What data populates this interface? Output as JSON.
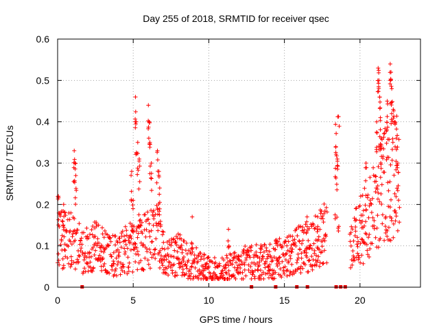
{
  "chart_data": {
    "type": "scatter",
    "title": "Day 255 of 2018, SRMTID for receiver qsec",
    "xlabel": "GPS time / hours",
    "ylabel": "SRMTID / TECUs",
    "xlim": [
      0,
      24
    ],
    "ylim": [
      0,
      0.6
    ],
    "x_ticks": [
      0,
      5,
      10,
      15,
      20
    ],
    "x_tick_labels": [
      "0",
      "5",
      "10",
      "15",
      "20"
    ],
    "y_ticks": [
      0,
      0.1,
      0.2,
      0.3,
      0.4,
      0.5,
      0.6
    ],
    "y_tick_labels": [
      "0",
      "0.1",
      "0.2",
      "0.3",
      "0.4",
      "0.5",
      "0.6"
    ],
    "grid": true,
    "marker": "plus",
    "color": "#ff0000",
    "series_profile": {
      "x": [
        0.0,
        0.3,
        0.7,
        1.0,
        1.3,
        1.7,
        2.0,
        2.5,
        3.0,
        3.5,
        4.0,
        4.5,
        5.0,
        5.5,
        6.0,
        6.5,
        7.0,
        7.5,
        8.0,
        8.5,
        9.0,
        9.5,
        10.0,
        10.5,
        11.0,
        11.5,
        12.0,
        12.5,
        13.0,
        13.5,
        14.0,
        14.5,
        15.0,
        15.5,
        16.0,
        16.5,
        17.0,
        17.5,
        17.8,
        18.4,
        18.6,
        19.0,
        19.5,
        20.0,
        20.5,
        21.0,
        21.5,
        22.0,
        22.5
      ],
      "y": [
        0.14,
        0.12,
        0.11,
        0.12,
        0.1,
        0.08,
        0.09,
        0.1,
        0.09,
        0.08,
        0.07,
        0.09,
        0.1,
        0.11,
        0.12,
        0.13,
        0.08,
        0.07,
        0.08,
        0.07,
        0.06,
        0.05,
        0.04,
        0.04,
        0.04,
        0.05,
        0.05,
        0.06,
        0.06,
        0.06,
        0.06,
        0.07,
        0.07,
        0.08,
        0.09,
        0.1,
        0.11,
        0.12,
        0.13,
        0.3,
        0.31,
        0.09,
        0.1,
        0.14,
        0.16,
        0.2,
        0.24,
        0.26,
        0.27
      ]
    },
    "spikes": [
      {
        "x": 0.05,
        "y": 0.22
      },
      {
        "x": 0.4,
        "y": 0.2
      },
      {
        "x": 1.1,
        "y": 0.33
      },
      {
        "x": 1.15,
        "y": 0.3
      },
      {
        "x": 1.2,
        "y": 0.27
      },
      {
        "x": 4.9,
        "y": 0.28
      },
      {
        "x": 5.0,
        "y": 0.21
      },
      {
        "x": 5.15,
        "y": 0.46
      },
      {
        "x": 5.2,
        "y": 0.4
      },
      {
        "x": 5.3,
        "y": 0.35
      },
      {
        "x": 5.4,
        "y": 0.31
      },
      {
        "x": 6.0,
        "y": 0.44
      },
      {
        "x": 6.05,
        "y": 0.4
      },
      {
        "x": 6.1,
        "y": 0.35
      },
      {
        "x": 6.2,
        "y": 0.3
      },
      {
        "x": 6.6,
        "y": 0.33
      },
      {
        "x": 6.7,
        "y": 0.28
      },
      {
        "x": 6.75,
        "y": 0.24
      },
      {
        "x": 8.9,
        "y": 0.17
      },
      {
        "x": 11.3,
        "y": 0.14
      },
      {
        "x": 16.5,
        "y": 0.17
      },
      {
        "x": 17.2,
        "y": 0.17
      },
      {
        "x": 18.4,
        "y": 0.34
      },
      {
        "x": 18.5,
        "y": 0.31
      },
      {
        "x": 20.4,
        "y": 0.3
      },
      {
        "x": 21.1,
        "y": 0.4
      },
      {
        "x": 21.2,
        "y": 0.53
      },
      {
        "x": 21.25,
        "y": 0.5
      },
      {
        "x": 21.3,
        "y": 0.46
      },
      {
        "x": 21.35,
        "y": 0.41
      },
      {
        "x": 21.4,
        "y": 0.36
      },
      {
        "x": 21.8,
        "y": 0.45
      },
      {
        "x": 22.0,
        "y": 0.54
      },
      {
        "x": 22.05,
        "y": 0.52
      },
      {
        "x": 22.1,
        "y": 0.48
      },
      {
        "x": 22.2,
        "y": 0.43
      },
      {
        "x": 22.3,
        "y": 0.4
      },
      {
        "x": 22.4,
        "y": 0.36
      },
      {
        "x": 22.5,
        "y": 0.3
      }
    ],
    "near_zero_markers_x": [
      1.6,
      12.8,
      14.4,
      15.8,
      16.5,
      18.4,
      18.7,
      19.0
    ]
  }
}
